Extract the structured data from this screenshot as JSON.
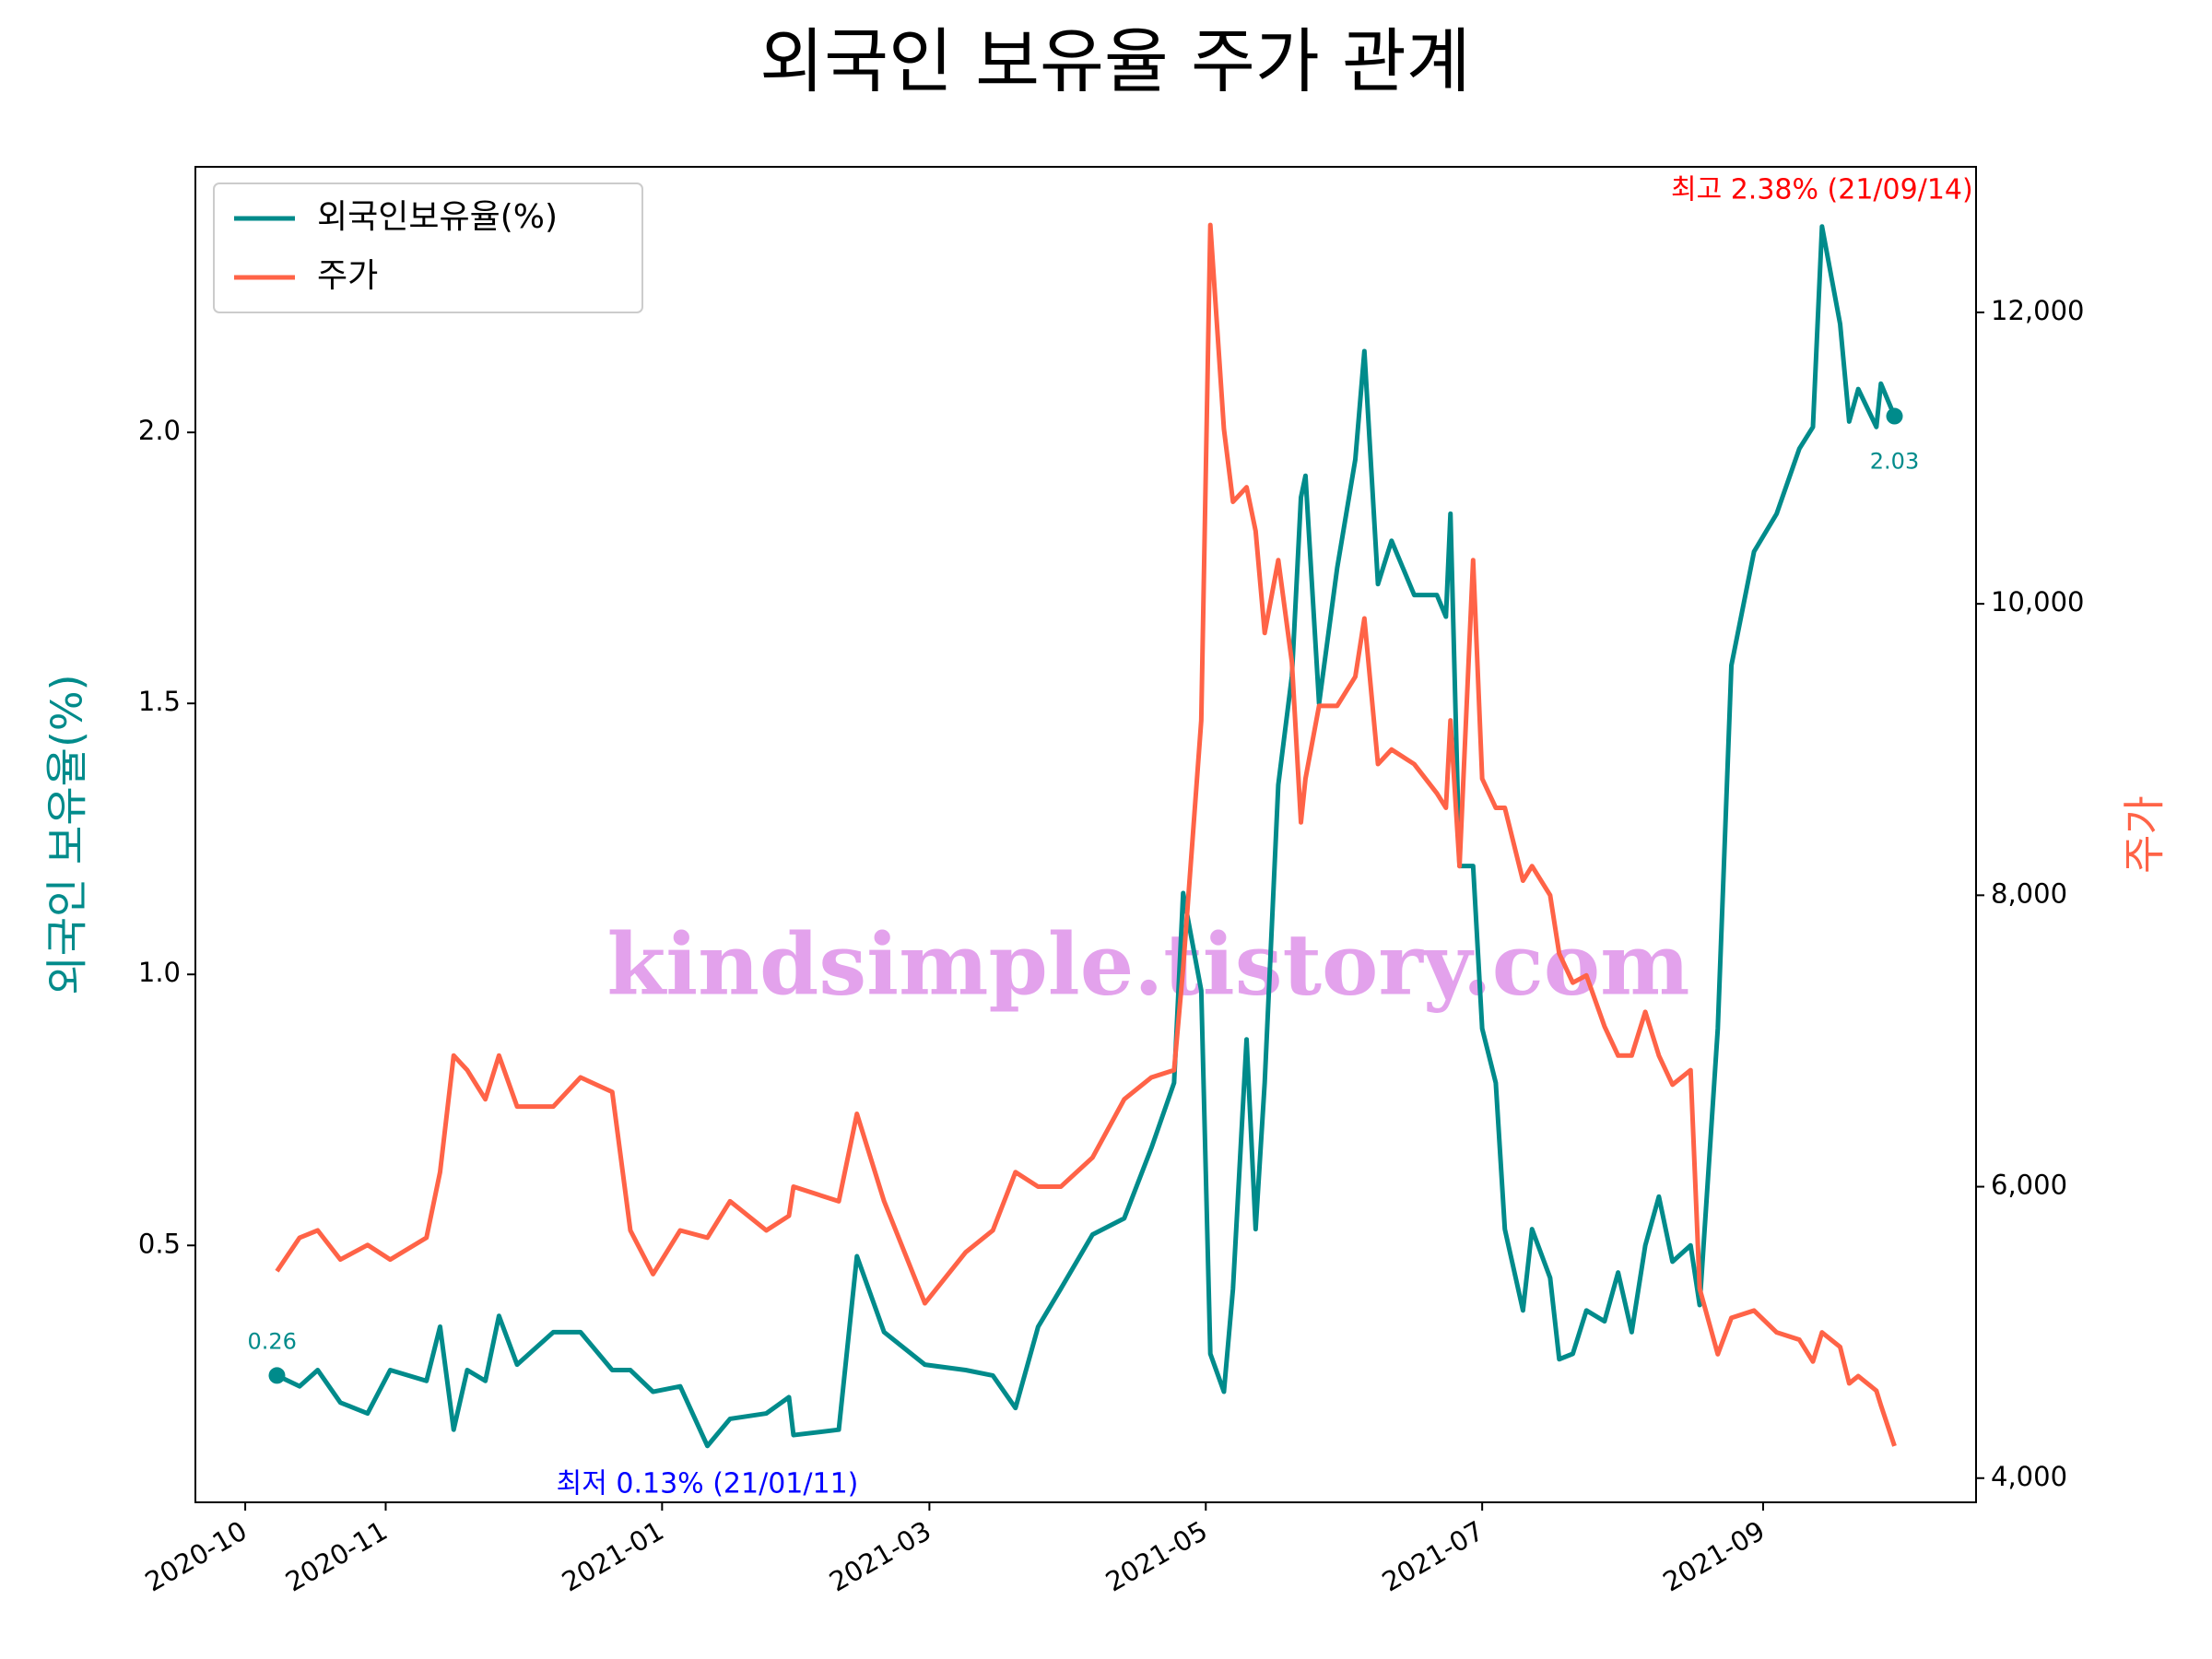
{
  "chart_data": {
    "type": "line",
    "title": "외국인 보유율 주가 관계",
    "ylabel": "외국인 보유율(%)",
    "y2label": "주가",
    "x": [
      "2020-10-08",
      "2020-10-13",
      "2020-10-17",
      "2020-10-22",
      "2020-10-28",
      "2020-11-02",
      "2020-11-10",
      "2020-11-13",
      "2020-11-16",
      "2020-11-19",
      "2020-11-23",
      "2020-11-26",
      "2020-11-30",
      "2020-12-08",
      "2020-12-14",
      "2020-12-21",
      "2020-12-25",
      "2020-12-30",
      "2021-01-05",
      "2021-01-11",
      "2021-01-16",
      "2021-01-24",
      "2021-01-29",
      "2021-01-30",
      "2021-02-09",
      "2021-02-13",
      "2021-02-19",
      "2021-02-28",
      "2021-03-09",
      "2021-03-15",
      "2021-03-20",
      "2021-03-25",
      "2021-03-30",
      "2021-04-06",
      "2021-04-13",
      "2021-04-19",
      "2021-04-24",
      "2021-04-26",
      "2021-04-30",
      "2021-05-02",
      "2021-05-05",
      "2021-05-07",
      "2021-05-10",
      "2021-05-12",
      "2021-05-14",
      "2021-05-17",
      "2021-05-20",
      "2021-05-22",
      "2021-05-23",
      "2021-05-26",
      "2021-05-30",
      "2021-06-03",
      "2021-06-05",
      "2021-06-08",
      "2021-06-11",
      "2021-06-16",
      "2021-06-21",
      "2021-06-23",
      "2021-06-24",
      "2021-06-26",
      "2021-06-29",
      "2021-07-01",
      "2021-07-04",
      "2021-07-06",
      "2021-07-10",
      "2021-07-12",
      "2021-07-16",
      "2021-07-18",
      "2021-07-21",
      "2021-07-24",
      "2021-07-28",
      "2021-07-31",
      "2021-08-03",
      "2021-08-06",
      "2021-08-09",
      "2021-08-12",
      "2021-08-16",
      "2021-08-18",
      "2021-08-22",
      "2021-08-25",
      "2021-08-30",
      "2021-09-04",
      "2021-09-09",
      "2021-09-12",
      "2021-09-14",
      "2021-09-18",
      "2021-09-20",
      "2021-09-22",
      "2021-09-26",
      "2021-09-27",
      "2021-09-30"
    ],
    "series": [
      {
        "name": "외국인보유율(%)",
        "color": "#008b8b",
        "values": [
          0.26,
          0.24,
          0.27,
          0.21,
          0.19,
          0.27,
          0.25,
          0.35,
          0.16,
          0.27,
          0.25,
          0.37,
          0.28,
          0.34,
          0.34,
          0.27,
          0.27,
          0.23,
          0.24,
          0.13,
          0.18,
          0.19,
          0.22,
          0.15,
          0.16,
          0.48,
          0.34,
          0.28,
          0.27,
          0.26,
          0.2,
          0.35,
          0.42,
          0.52,
          0.55,
          0.68,
          0.8,
          1.15,
          0.97,
          0.3,
          0.23,
          0.42,
          0.88,
          0.53,
          0.8,
          1.35,
          1.55,
          1.88,
          1.92,
          1.5,
          1.75,
          1.95,
          2.15,
          1.72,
          1.8,
          1.7,
          1.7,
          1.66,
          1.85,
          1.2,
          1.2,
          0.9,
          0.8,
          0.53,
          0.38,
          0.53,
          0.44,
          0.29,
          0.3,
          0.38,
          0.36,
          0.45,
          0.34,
          0.5,
          0.59,
          0.47,
          0.5,
          0.39,
          0.9,
          1.57,
          1.78,
          1.85,
          1.97,
          2.01,
          2.38,
          2.2,
          2.02,
          2.08,
          2.01,
          2.09,
          2.03
        ]
      },
      {
        "name": "주가",
        "color": "#ff6347",
        "axis": "y2",
        "values": [
          5420,
          5650,
          5700,
          5500,
          5600,
          5500,
          5650,
          6100,
          6900,
          6800,
          6600,
          6900,
          6550,
          6550,
          6750,
          6650,
          5700,
          5400,
          5700,
          5650,
          5900,
          5700,
          5800,
          6000,
          5900,
          6500,
          5900,
          5200,
          5550,
          5700,
          6100,
          6000,
          6000,
          6200,
          6600,
          6750,
          6800,
          7500,
          9200,
          12600,
          11200,
          10700,
          10800,
          10500,
          9800,
          10300,
          9600,
          8500,
          8800,
          9300,
          9300,
          9500,
          9900,
          8900,
          9000,
          8900,
          8700,
          8600,
          9200,
          8200,
          10300,
          8800,
          8600,
          8600,
          8100,
          8200,
          8000,
          7600,
          7400,
          7450,
          7100,
          6900,
          6900,
          7200,
          6900,
          6700,
          6800,
          5300,
          4850,
          5100,
          5150,
          5000,
          4950,
          4800,
          5000,
          4900,
          4650,
          4700,
          4600,
          4500,
          4220
        ]
      }
    ],
    "xlim": [
      "2020-09-20",
      "2021-10-18"
    ],
    "xticks": [
      {
        "value": "2020-10-01",
        "label": "2020-10"
      },
      {
        "value": "2020-11-01",
        "label": "2020-11"
      },
      {
        "value": "2021-01-01",
        "label": "2021-01"
      },
      {
        "value": "2021-03-01",
        "label": "2021-03"
      },
      {
        "value": "2021-05-01",
        "label": "2021-05"
      },
      {
        "value": "2021-07-01",
        "label": "2021-07"
      },
      {
        "value": "2021-09-01",
        "label": "2021-09"
      }
    ],
    "ylim": [
      0.026,
      2.49
    ],
    "yticks": [
      0.5,
      {
        "value": 1,
        "label": "1.0"
      },
      1.5,
      {
        "value": 2,
        "label": "2.0"
      }
    ],
    "y2lim": [
      3834,
      12999
    ],
    "y2ticks": [
      {
        "value": 4000,
        "label": "4,000"
      },
      {
        "value": 6000,
        "label": "6,000"
      },
      {
        "value": 8000,
        "label": "8,000"
      },
      {
        "value": 10000,
        "label": "10,000"
      },
      {
        "value": 12000,
        "label": "12,000"
      }
    ],
    "grid": false,
    "legend": "upper left",
    "annotations": [
      {
        "text": "최고 2.38% (21/09/14)",
        "color": "#ff0000",
        "at": "max"
      },
      {
        "text": "최저 0.13% (21/01/11)",
        "color": "#0000ff",
        "at": "min"
      }
    ],
    "watermark": "kindsimple.tistory.com"
  }
}
